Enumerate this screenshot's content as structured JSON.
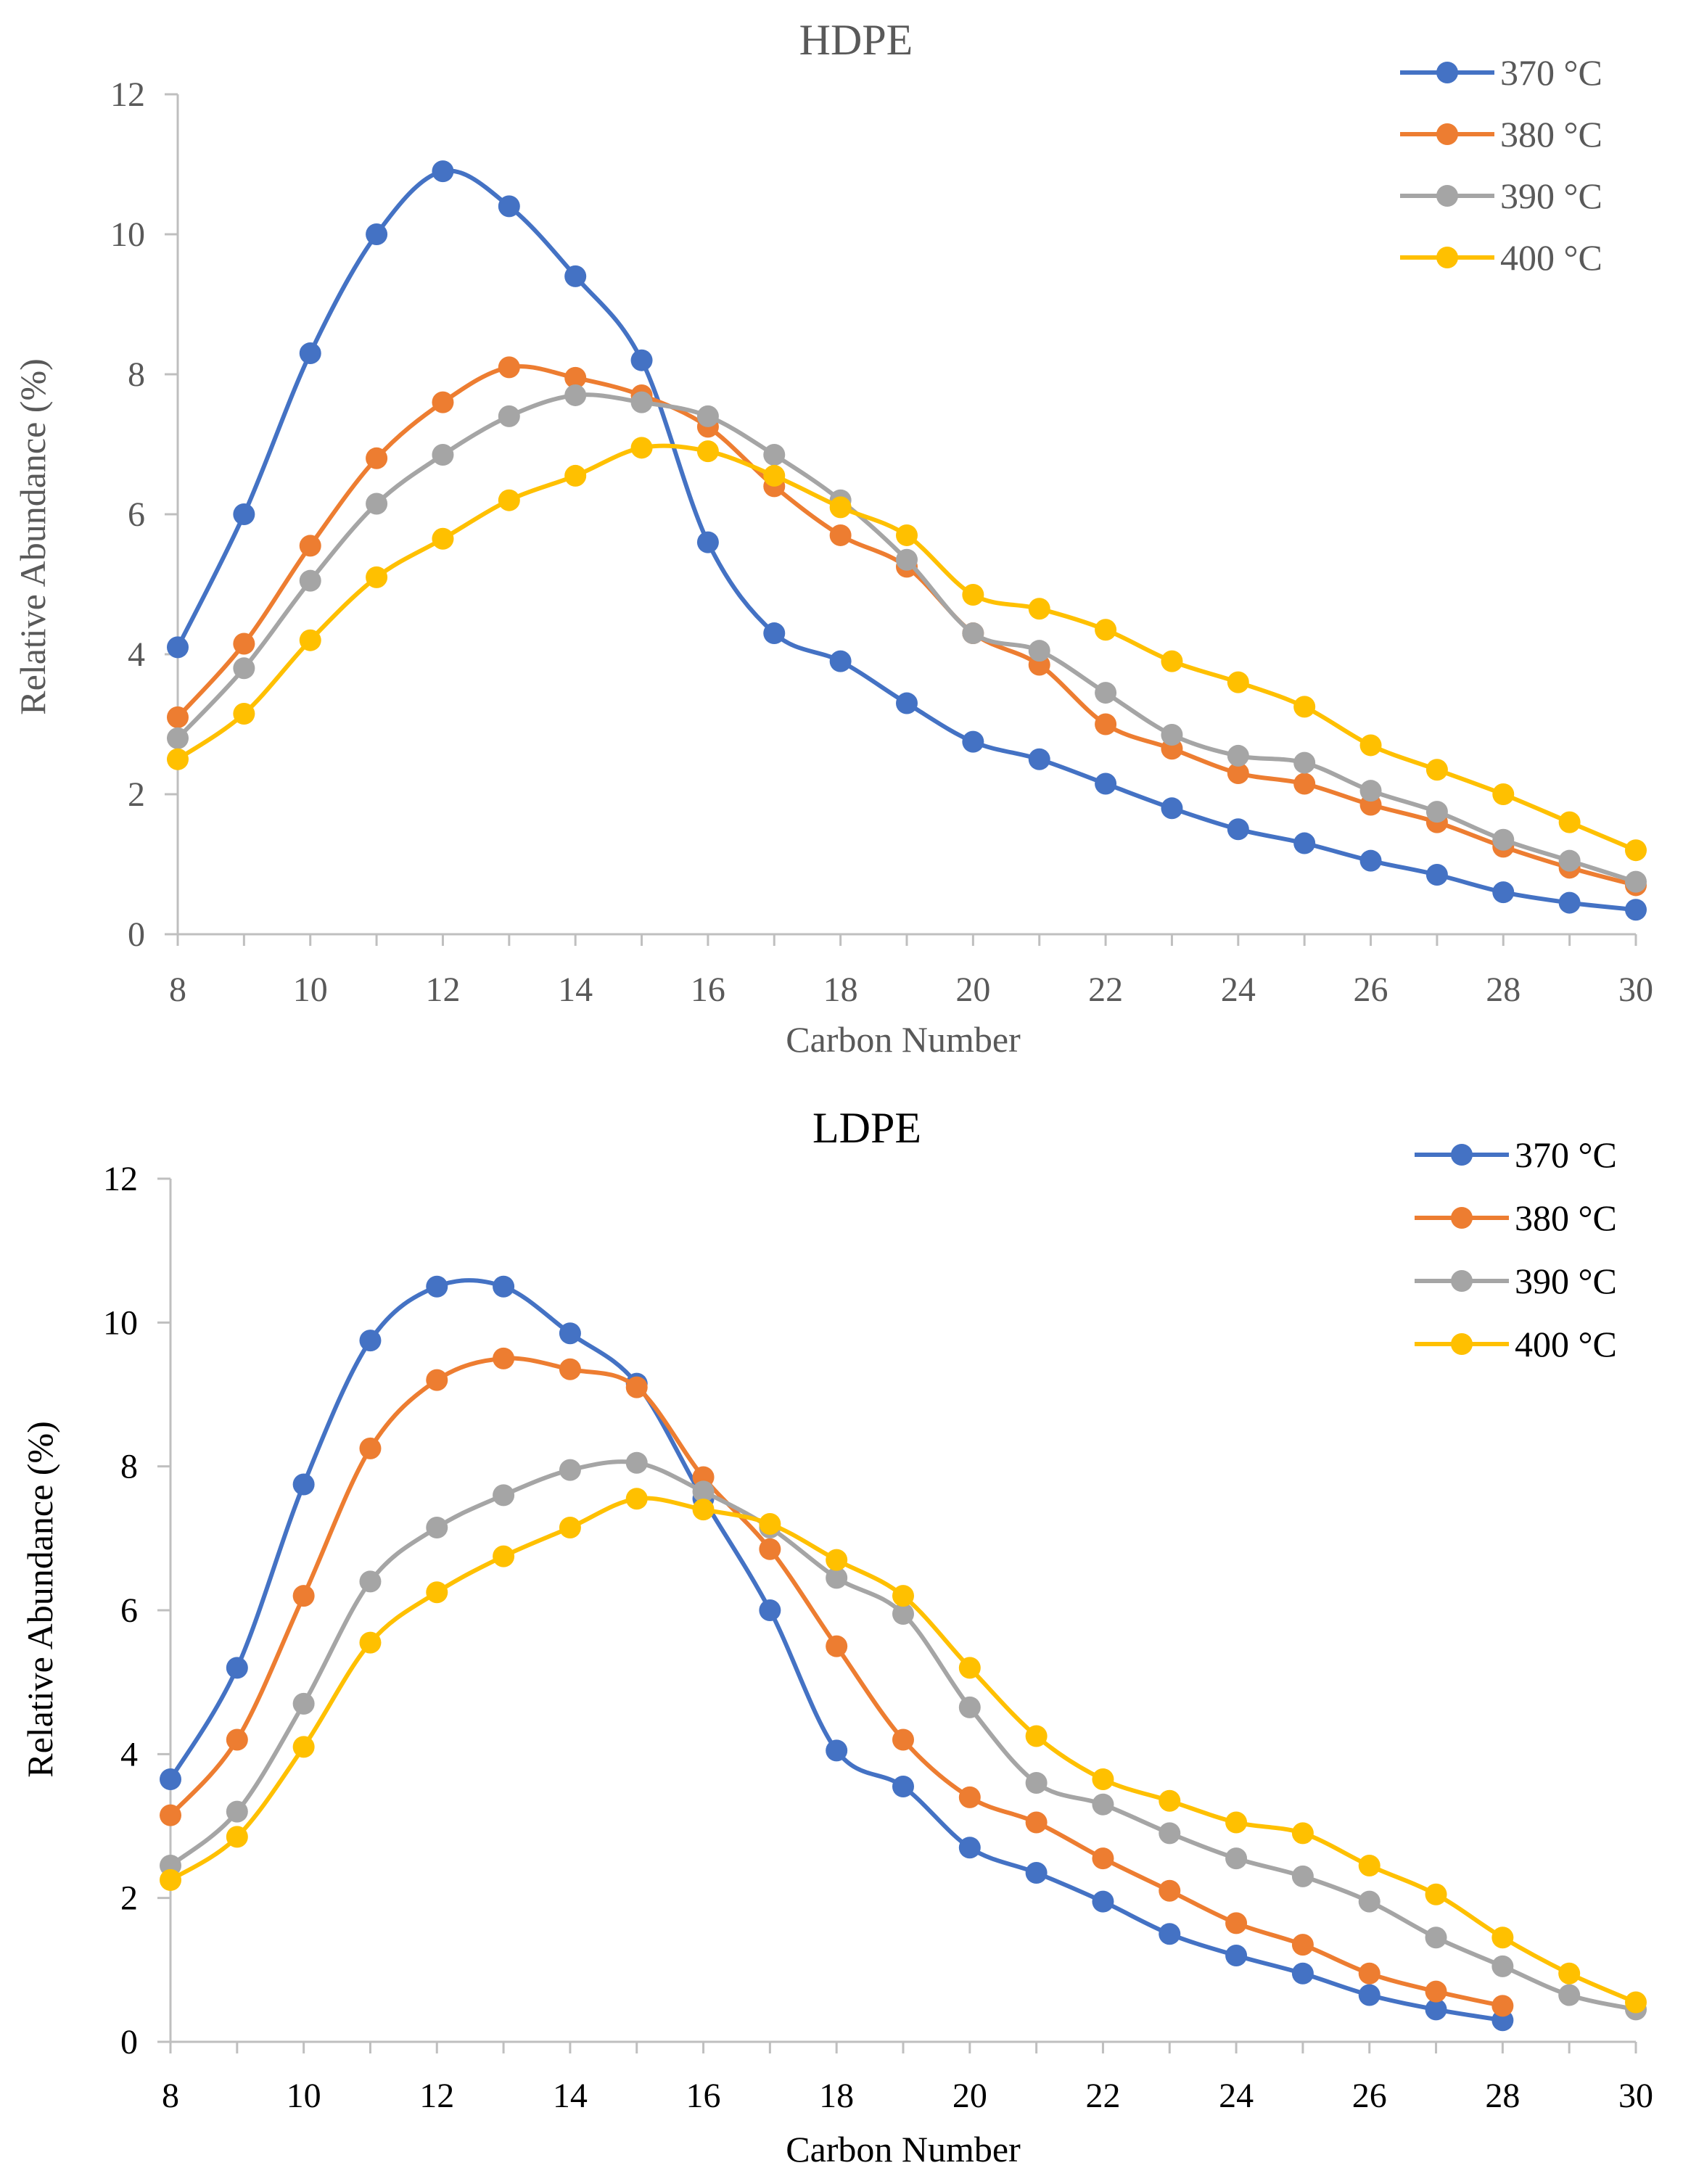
{
  "chart_data": [
    {
      "id": "hdpe",
      "type": "line",
      "title": "HDPE",
      "xlabel": "Carbon Number",
      "ylabel": "Relative Abundance (%)",
      "xlim": [
        8,
        30
      ],
      "ylim": [
        0,
        12
      ],
      "x_ticks": [
        8,
        10,
        12,
        14,
        16,
        18,
        20,
        22,
        24,
        26,
        28,
        30
      ],
      "y_ticks": [
        0,
        2,
        4,
        6,
        8,
        10,
        12
      ],
      "legend_position": "top-right",
      "series": [
        {
          "name": "370 °C",
          "color": "#4472C4",
          "x": [
            8,
            9,
            10,
            11,
            12,
            13,
            14,
            15,
            16,
            17,
            18,
            19,
            20,
            21,
            22,
            23,
            24,
            25,
            26,
            27,
            28,
            29,
            30
          ],
          "values": [
            4.1,
            6.0,
            8.3,
            10.0,
            10.9,
            10.4,
            9.4,
            8.2,
            5.6,
            4.3,
            3.9,
            3.3,
            2.75,
            2.5,
            2.15,
            1.8,
            1.5,
            1.3,
            1.05,
            0.85,
            0.6,
            0.45,
            0.35
          ]
        },
        {
          "name": "380 °C",
          "color": "#ED7D31",
          "x": [
            8,
            9,
            10,
            11,
            12,
            13,
            14,
            15,
            16,
            17,
            18,
            19,
            20,
            21,
            22,
            23,
            24,
            25,
            26,
            27,
            28,
            29,
            30
          ],
          "values": [
            3.1,
            4.15,
            5.55,
            6.8,
            7.6,
            8.1,
            7.95,
            7.7,
            7.25,
            6.4,
            5.7,
            5.25,
            4.3,
            3.85,
            3.0,
            2.65,
            2.3,
            2.15,
            1.85,
            1.6,
            1.25,
            0.95,
            0.7
          ]
        },
        {
          "name": "390 °C",
          "color": "#A5A5A5",
          "x": [
            8,
            9,
            10,
            11,
            12,
            13,
            14,
            15,
            16,
            17,
            18,
            19,
            20,
            21,
            22,
            23,
            24,
            25,
            26,
            27,
            28,
            29,
            30
          ],
          "values": [
            2.8,
            3.8,
            5.05,
            6.15,
            6.85,
            7.4,
            7.7,
            7.6,
            7.4,
            6.85,
            6.2,
            5.35,
            4.3,
            4.05,
            3.45,
            2.85,
            2.55,
            2.45,
            2.05,
            1.75,
            1.35,
            1.05,
            0.75
          ]
        },
        {
          "name": "400 °C",
          "color": "#FFC000",
          "x": [
            8,
            9,
            10,
            11,
            12,
            13,
            14,
            15,
            16,
            17,
            18,
            19,
            20,
            21,
            22,
            23,
            24,
            25,
            26,
            27,
            28,
            29,
            30
          ],
          "values": [
            2.5,
            3.15,
            4.2,
            5.1,
            5.65,
            6.2,
            6.55,
            6.95,
            6.9,
            6.55,
            6.1,
            5.7,
            4.85,
            4.65,
            4.35,
            3.9,
            3.6,
            3.25,
            2.7,
            2.35,
            2.0,
            1.6,
            1.2
          ]
        }
      ]
    },
    {
      "id": "ldpe",
      "type": "line",
      "title": "LDPE",
      "xlabel": "Carbon Number",
      "ylabel": "Relative Abundance (%)",
      "xlim": [
        8,
        30
      ],
      "ylim": [
        0,
        12
      ],
      "x_ticks": [
        8,
        10,
        12,
        14,
        16,
        18,
        20,
        22,
        24,
        26,
        28,
        30
      ],
      "y_ticks": [
        0,
        2,
        4,
        6,
        8,
        10,
        12
      ],
      "legend_position": "top-right",
      "series": [
        {
          "name": "370 °C",
          "color": "#4472C4",
          "x": [
            8,
            9,
            10,
            11,
            12,
            13,
            14,
            15,
            16,
            17,
            18,
            19,
            20,
            21,
            22,
            23,
            24,
            25,
            26,
            27,
            28
          ],
          "values": [
            3.65,
            5.2,
            7.75,
            9.75,
            10.5,
            10.5,
            9.85,
            9.15,
            7.55,
            6.0,
            4.05,
            3.55,
            2.7,
            2.35,
            1.95,
            1.5,
            1.2,
            0.95,
            0.65,
            0.45,
            0.3
          ]
        },
        {
          "name": "380 °C",
          "color": "#ED7D31",
          "x": [
            8,
            9,
            10,
            11,
            12,
            13,
            14,
            15,
            16,
            17,
            18,
            19,
            20,
            21,
            22,
            23,
            24,
            25,
            26,
            27,
            28
          ],
          "values": [
            3.15,
            4.2,
            6.2,
            8.25,
            9.2,
            9.5,
            9.35,
            9.1,
            7.85,
            6.85,
            5.5,
            4.2,
            3.4,
            3.05,
            2.55,
            2.1,
            1.65,
            1.35,
            0.95,
            0.7,
            0.5
          ]
        },
        {
          "name": "390 °C",
          "color": "#A5A5A5",
          "x": [
            8,
            9,
            10,
            11,
            12,
            13,
            14,
            15,
            16,
            17,
            18,
            19,
            20,
            21,
            22,
            23,
            24,
            25,
            26,
            27,
            28,
            29,
            30
          ],
          "values": [
            2.45,
            3.2,
            4.7,
            6.4,
            7.15,
            7.6,
            7.95,
            8.05,
            7.65,
            7.15,
            6.45,
            5.95,
            4.65,
            3.6,
            3.3,
            2.9,
            2.55,
            2.3,
            1.95,
            1.45,
            1.05,
            0.65,
            0.45
          ]
        },
        {
          "name": "400 °C",
          "color": "#FFC000",
          "x": [
            8,
            9,
            10,
            11,
            12,
            13,
            14,
            15,
            16,
            17,
            18,
            19,
            20,
            21,
            22,
            23,
            24,
            25,
            26,
            27,
            28,
            29,
            30
          ],
          "values": [
            2.25,
            2.85,
            4.1,
            5.55,
            6.25,
            6.75,
            7.15,
            7.55,
            7.4,
            7.2,
            6.7,
            6.2,
            5.2,
            4.25,
            3.65,
            3.35,
            3.05,
            2.9,
            2.45,
            2.05,
            1.45,
            0.95,
            0.55
          ]
        }
      ]
    }
  ]
}
